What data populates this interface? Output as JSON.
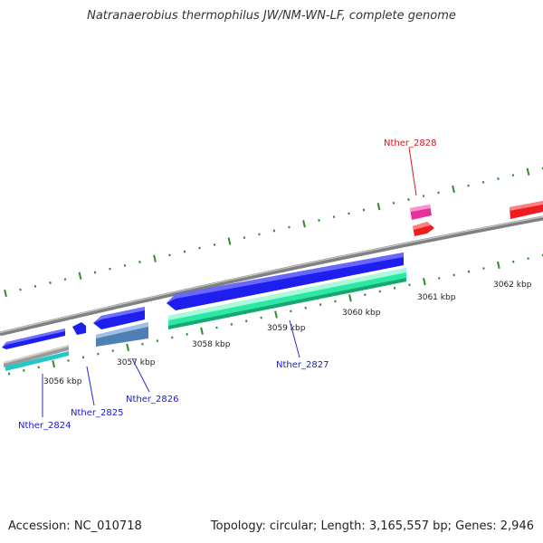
{
  "title": "Natranaerobius thermophilus JW/NM-WN-LF, complete genome",
  "footer": {
    "accession": "Accession: NC_010718",
    "topology": "Topology: circular; Length: 3,165,557 bp; Genes: 2,946"
  },
  "kbp_labels": [
    "3056 kbp",
    "3057 kbp",
    "3058 kbp",
    "3059 kbp",
    "3060 kbp",
    "3061 kbp",
    "3062 kbp"
  ],
  "genes": [
    {
      "name": "Nther_2824",
      "color": "#1a1acc"
    },
    {
      "name": "Nther_2825",
      "color": "#1a1acc"
    },
    {
      "name": "Nther_2826",
      "color": "#1a1acc"
    },
    {
      "name": "Nther_2827",
      "color": "#1a1acc"
    },
    {
      "name": "Nther_2828",
      "color": "#cc1a1a"
    }
  ],
  "colors": {
    "backbone": "#8c8c8c",
    "tick": "#2e8b2e",
    "blue_feature": "#1e1eee",
    "teal_feature": "#2de8a4",
    "steel_feature": "#4f7fb5",
    "pink_feature": "#e8309a",
    "red_feature": "#ee1c1c",
    "gray_feature": "#9a9a9a",
    "cyan_feature": "#20c8c8"
  }
}
